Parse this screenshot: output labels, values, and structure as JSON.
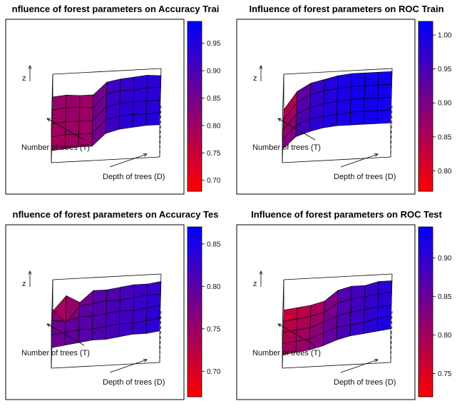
{
  "chart_data": [
    {
      "type": "surface3d",
      "title": "nfluence of forest parameters on Accuracy Trai",
      "xlabel": "Depth of trees (D)",
      "ylabel": "Number of trees (T)",
      "zlabel": "z",
      "colorbar": {
        "ticks": [
          "0.70",
          "0.75",
          "0.80",
          "0.85",
          "0.90",
          "0.95"
        ],
        "range": [
          0.68,
          0.99
        ]
      },
      "z": [
        [
          0.8,
          0.81,
          0.8,
          0.8,
          0.9,
          0.92,
          0.93,
          0.94,
          0.93
        ],
        [
          0.8,
          0.81,
          0.81,
          0.8,
          0.91,
          0.93,
          0.93,
          0.94,
          0.94
        ],
        [
          0.79,
          0.8,
          0.8,
          0.8,
          0.91,
          0.93,
          0.94,
          0.94,
          0.94
        ],
        [
          0.79,
          0.8,
          0.8,
          0.8,
          0.91,
          0.93,
          0.94,
          0.94,
          0.94
        ],
        [
          0.78,
          0.79,
          0.8,
          0.8,
          0.9,
          0.93,
          0.94,
          0.95,
          0.95
        ]
      ]
    },
    {
      "type": "surface3d",
      "title": "Influence of forest parameters on ROC Train",
      "xlabel": "Depth of trees (D)",
      "ylabel": "Number of trees (T)",
      "zlabel": "z",
      "colorbar": {
        "ticks": [
          "0.80",
          "0.85",
          "0.90",
          "0.95",
          "1.00"
        ],
        "range": [
          0.77,
          1.02
        ]
      },
      "z": [
        [
          0.78,
          0.9,
          0.95,
          0.97,
          0.99,
          1.0,
          1.0,
          1.0,
          1.0
        ],
        [
          0.8,
          0.91,
          0.96,
          0.98,
          0.99,
          1.0,
          1.0,
          1.0,
          1.0
        ],
        [
          0.82,
          0.92,
          0.96,
          0.98,
          0.99,
          1.0,
          1.0,
          1.0,
          1.0
        ],
        [
          0.84,
          0.93,
          0.97,
          0.98,
          0.99,
          1.0,
          1.0,
          1.0,
          1.0
        ],
        [
          0.86,
          0.94,
          0.97,
          0.99,
          1.0,
          1.0,
          1.0,
          1.0,
          1.0
        ]
      ]
    },
    {
      "type": "surface3d",
      "title": "nfluence of forest parameters on Accuracy Tes",
      "xlabel": "Depth of trees (D)",
      "ylabel": "Number of trees (T)",
      "zlabel": "z",
      "colorbar": {
        "ticks": [
          "0.70",
          "0.75",
          "0.80",
          "0.85"
        ],
        "range": [
          0.67,
          0.87
        ]
      },
      "z": [
        [
          0.7,
          0.78,
          0.74,
          0.8,
          0.8,
          0.81,
          0.82,
          0.82,
          0.83
        ],
        [
          0.78,
          0.7,
          0.79,
          0.8,
          0.81,
          0.81,
          0.82,
          0.83,
          0.83
        ],
        [
          0.79,
          0.78,
          0.8,
          0.8,
          0.81,
          0.82,
          0.82,
          0.83,
          0.84
        ],
        [
          0.78,
          0.79,
          0.8,
          0.8,
          0.81,
          0.82,
          0.82,
          0.83,
          0.84
        ],
        [
          0.78,
          0.79,
          0.8,
          0.81,
          0.81,
          0.82,
          0.83,
          0.83,
          0.84
        ]
      ]
    },
    {
      "type": "surface3d",
      "title": "Influence of forest parameters on ROC Test",
      "xlabel": "Depth of trees (D)",
      "ylabel": "Number of trees (T)",
      "zlabel": "z",
      "colorbar": {
        "ticks": [
          "0.75",
          "0.80",
          "0.85",
          "0.90"
        ],
        "range": [
          0.72,
          0.94
        ]
      },
      "z": [
        [
          0.76,
          0.77,
          0.78,
          0.8,
          0.86,
          0.88,
          0.88,
          0.9,
          0.9
        ],
        [
          0.77,
          0.78,
          0.79,
          0.81,
          0.86,
          0.88,
          0.89,
          0.9,
          0.91
        ],
        [
          0.78,
          0.79,
          0.8,
          0.83,
          0.86,
          0.88,
          0.89,
          0.9,
          0.91
        ],
        [
          0.79,
          0.8,
          0.81,
          0.84,
          0.87,
          0.88,
          0.89,
          0.91,
          0.92
        ],
        [
          0.8,
          0.81,
          0.82,
          0.84,
          0.87,
          0.89,
          0.9,
          0.91,
          0.92
        ]
      ]
    }
  ]
}
